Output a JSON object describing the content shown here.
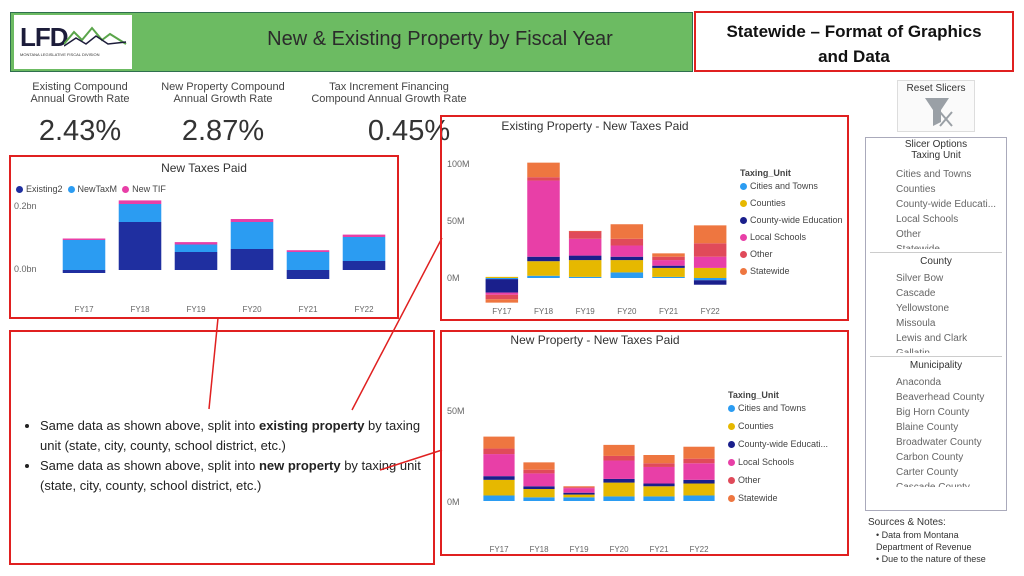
{
  "header": {
    "logo_text": "LFD",
    "logo_sub": "MONTANA LEGISLATIVE FISCAL DIVISION",
    "title": "New & Existing Property by Fiscal Year"
  },
  "callout": {
    "line1": "Statewide – Format of Graphics",
    "line2": "and Data"
  },
  "kpis": [
    {
      "label1": "Existing Compound",
      "label2": "Annual Growth Rate",
      "value": "2.43%"
    },
    {
      "label1": "New Property Compound",
      "label2": "Annual Growth Rate",
      "value": "2.87%"
    },
    {
      "label1": "Tax Increment Financing",
      "label2": "Compound Annual Growth Rate",
      "value": "0.45%"
    }
  ],
  "reset_slicers": "Reset Slicers",
  "slicers": {
    "options_title": "Slicer Options",
    "taxing_unit": {
      "title": "Taxing Unit",
      "items": [
        "Cities and Towns",
        "Counties",
        "County-wide Educati...",
        "Local Schools",
        "Other",
        "Statewide"
      ]
    },
    "county": {
      "title": "County",
      "items": [
        "Silver Bow",
        "Cascade",
        "Yellowstone",
        "Missoula",
        "Lewis and Clark",
        "Gallatin"
      ]
    },
    "municipality": {
      "title": "Municipality",
      "items": [
        "Anaconda",
        "Beaverhead County",
        "Big Horn County",
        "Blaine County",
        "Broadwater County",
        "Carbon County",
        "Carter County",
        "Cascade County"
      ]
    }
  },
  "notes": {
    "title": "Sources & Notes:",
    "items": [
      "Data from Montana Department of Revenue",
      "Due to the nature of these"
    ]
  },
  "bullets": [
    {
      "pre": "Same data as shown above, split into ",
      "bold": "existing property",
      "post": " by taxing unit (state, city, county, school district, etc.)"
    },
    {
      "pre": "Same data as shown above, split into ",
      "bold": "new property",
      "post": " by taxing unit (state, city, county, school district, etc.)"
    }
  ],
  "colors": {
    "existing": "#1f2fa0",
    "newtax": "#2b9cf2",
    "tif": "#e83fa7",
    "cities": "#2b9cf2",
    "counties": "#e6b800",
    "education": "#1a1f8c",
    "schools": "#e83fa7",
    "other": "#e04a5a",
    "statewide": "#ee7640"
  },
  "chart_data": [
    {
      "type": "bar",
      "title": "New Taxes Paid",
      "categories": [
        "FY17",
        "FY18",
        "FY19",
        "FY20",
        "FY21",
        "FY22"
      ],
      "y_ticks": [
        "0.2bn",
        "0.0bn"
      ],
      "series": [
        {
          "name": "Existing2",
          "color": "#1f2fa0",
          "values": [
            -0.01,
            0.16,
            0.06,
            0.07,
            -0.03,
            0.03
          ]
        },
        {
          "name": "NewTaxM",
          "color": "#2b9cf2",
          "values": [
            0.1,
            0.06,
            0.025,
            0.09,
            0.06,
            0.08
          ]
        },
        {
          "name": "New TIF",
          "color": "#e83fa7",
          "values": [
            0.005,
            0.012,
            0.008,
            0.01,
            0.006,
            0.008
          ]
        }
      ]
    },
    {
      "type": "bar",
      "title": "Existing Property - New Taxes Paid",
      "categories": [
        "FY17",
        "FY18",
        "FY19",
        "FY20",
        "FY21",
        "FY22"
      ],
      "y_ticks": [
        "100M",
        "50M",
        "0M"
      ],
      "legend_title": "Taxing_Unit",
      "series": [
        {
          "name": "Cities and Towns",
          "color": "#2b9cf2",
          "values": [
            -1,
            2,
            1,
            5,
            1,
            -2
          ]
        },
        {
          "name": "Counties",
          "color": "#e6b800",
          "values": [
            1,
            13,
            15,
            11,
            8,
            9
          ]
        },
        {
          "name": "County-wide Education",
          "color": "#1a1f8c",
          "values": [
            -12,
            4,
            4,
            3,
            2,
            -4
          ]
        },
        {
          "name": "Local Schools",
          "color": "#e83fa7",
          "values": [
            -2,
            68,
            15,
            10,
            5,
            10
          ]
        },
        {
          "name": "Other",
          "color": "#e04a5a",
          "values": [
            -4,
            3,
            7,
            6,
            3,
            12
          ]
        },
        {
          "name": "Statewide",
          "color": "#ee7640",
          "values": [
            -3,
            13,
            0,
            13,
            3,
            16
          ]
        }
      ]
    },
    {
      "type": "bar",
      "title": "New Property - New Taxes Paid",
      "categories": [
        "FY17",
        "FY18",
        "FY19",
        "FY20",
        "FY21",
        "FY22"
      ],
      "y_ticks": [
        "50M",
        "0M"
      ],
      "legend_title": "Taxing_Unit",
      "series": [
        {
          "name": "Cities and Towns",
          "color": "#2b9cf2",
          "values": [
            6,
            4,
            4,
            5,
            5,
            6
          ]
        },
        {
          "name": "Counties",
          "color": "#e6b800",
          "values": [
            17,
            9,
            3,
            15,
            11,
            13
          ]
        },
        {
          "name": "County-wide Educati...",
          "color": "#1a1f8c",
          "values": [
            4,
            3,
            2,
            4,
            3,
            4
          ]
        },
        {
          "name": "Local Schools",
          "color": "#e83fa7",
          "values": [
            24,
            14,
            5,
            20,
            18,
            18
          ]
        },
        {
          "name": "Other",
          "color": "#e04a5a",
          "values": [
            6,
            4,
            1,
            5,
            4,
            5
          ]
        },
        {
          "name": "Statewide",
          "color": "#ee7640",
          "values": [
            13,
            8,
            1,
            12,
            9,
            13
          ]
        }
      ]
    }
  ]
}
